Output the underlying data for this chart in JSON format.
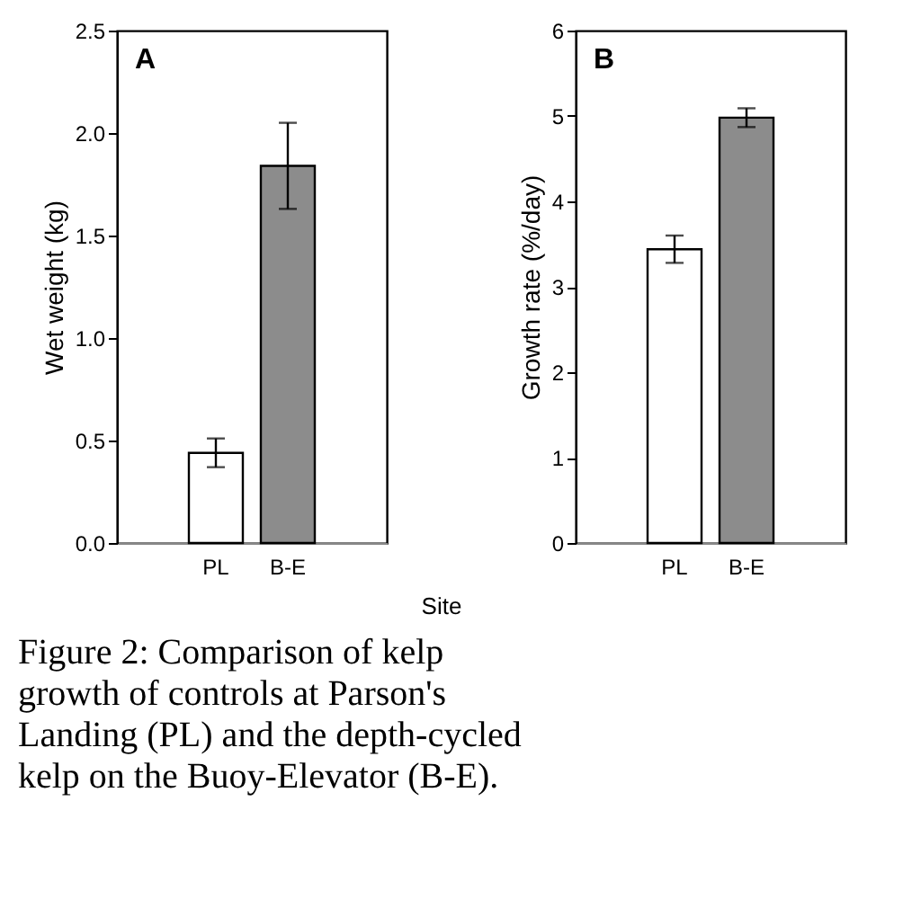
{
  "chart_data": [
    {
      "type": "bar",
      "title": "A",
      "ylabel": "Wet weight (kg)",
      "xlabel": "Site",
      "categories": [
        "PL",
        "B-E"
      ],
      "values": [
        0.44,
        1.84
      ],
      "errors": [
        0.07,
        0.21
      ],
      "colors": [
        "#ffffff",
        "#8c8c8c"
      ],
      "ylim": [
        0,
        2.5
      ],
      "yticks": [
        {
          "value": 0,
          "label": "0.0"
        },
        {
          "value": 0.5,
          "label": "0.5"
        },
        {
          "value": 1,
          "label": "1.0"
        },
        {
          "value": 1.5,
          "label": "1.5"
        },
        {
          "value": 2,
          "label": "2.0"
        },
        {
          "value": 2.5,
          "label": "2.5"
        }
      ],
      "grid": false,
      "annotations": [
        "Figure 2: Comparison of kelp growth of controls at Parson's Landing (PL) and the depth-cycled kelp on the Buoy-Elevator (B-E)."
      ]
    },
    {
      "type": "bar",
      "title": "B",
      "ylabel": "Growth rate (%/day)",
      "categories": [
        "PL",
        "B-E"
      ],
      "values": [
        3.44,
        4.98
      ],
      "errors": [
        0.16,
        0.11
      ],
      "colors": [
        "#ffffff",
        "#8c8c8c"
      ],
      "ylim": [
        0,
        6
      ],
      "yticks": [
        0,
        1,
        2,
        3,
        4,
        5,
        6
      ],
      "grid": false
    }
  ]
}
